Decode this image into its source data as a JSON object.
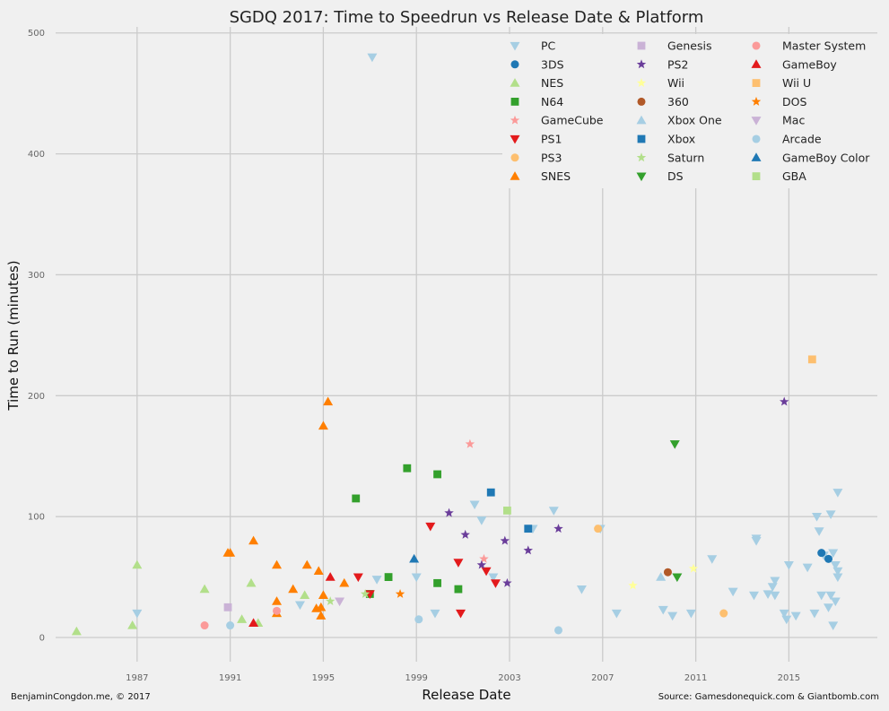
{
  "chart_data": {
    "type": "scatter",
    "title": "SGDQ 2017: Time to Speedrun vs Release Date & Platform",
    "xlabel": "Release Date",
    "ylabel": "Time to Run (minutes)",
    "xlim": [
      1983.5,
      2018.8
    ],
    "ylim": [
      -20,
      505
    ],
    "xticks": [
      1987,
      1991,
      1995,
      1999,
      2003,
      2007,
      2011,
      2015
    ],
    "yticks": [
      0,
      100,
      200,
      300,
      400,
      500
    ],
    "grid": true,
    "legend_position": "top-right",
    "credit_left": "BenjaminCongdon.me, © 2017",
    "credit_right": "Source: Gamesdonequick.com & Giantbomb.com",
    "series": [
      {
        "name": "PC",
        "color": "#a6cee3",
        "marker": "triangle-down",
        "points": [
          [
            1997.1,
            480
          ],
          [
            1987.0,
            20
          ],
          [
            1994.0,
            27
          ],
          [
            1997.3,
            48
          ],
          [
            1999.0,
            50
          ],
          [
            1999.8,
            20
          ],
          [
            2001.5,
            110
          ],
          [
            2001.8,
            97
          ],
          [
            2002.3,
            50
          ],
          [
            2004.0,
            90
          ],
          [
            2004.9,
            105
          ],
          [
            2006.1,
            40
          ],
          [
            2006.9,
            90
          ],
          [
            2007.6,
            20
          ],
          [
            2009.6,
            23
          ],
          [
            2010.0,
            18
          ],
          [
            2010.8,
            20
          ],
          [
            2011.7,
            65
          ],
          [
            2012.6,
            38
          ],
          [
            2013.5,
            35
          ],
          [
            2013.6,
            82
          ],
          [
            2013.6,
            80
          ],
          [
            2014.1,
            36
          ],
          [
            2014.3,
            42
          ],
          [
            2014.4,
            47
          ],
          [
            2014.4,
            35
          ],
          [
            2014.8,
            20
          ],
          [
            2014.9,
            15
          ],
          [
            2015.0,
            60
          ],
          [
            2015.3,
            18
          ],
          [
            2015.8,
            58
          ],
          [
            2016.1,
            20
          ],
          [
            2016.2,
            100
          ],
          [
            2016.3,
            88
          ],
          [
            2016.4,
            35
          ],
          [
            2016.5,
            68
          ],
          [
            2016.7,
            25
          ],
          [
            2016.8,
            102
          ],
          [
            2016.8,
            35
          ],
          [
            2016.9,
            70
          ],
          [
            2016.9,
            10
          ],
          [
            2017.0,
            60
          ],
          [
            2017.1,
            120
          ],
          [
            2017.1,
            55
          ],
          [
            2017.1,
            50
          ],
          [
            2017.0,
            30
          ]
        ]
      },
      {
        "name": "3DS",
        "color": "#1f78b4",
        "marker": "circle",
        "points": [
          [
            2016.4,
            70
          ],
          [
            2016.7,
            65
          ]
        ]
      },
      {
        "name": "NES",
        "color": "#b2df8a",
        "marker": "triangle-up",
        "points": [
          [
            1984.4,
            5
          ],
          [
            1986.8,
            10
          ],
          [
            1987.0,
            60
          ],
          [
            1989.9,
            40
          ],
          [
            1991.5,
            15
          ],
          [
            1991.9,
            45
          ],
          [
            1992.2,
            12
          ],
          [
            1993.0,
            20
          ],
          [
            1994.2,
            35
          ]
        ]
      },
      {
        "name": "N64",
        "color": "#33a02c",
        "marker": "square",
        "points": [
          [
            1996.4,
            115
          ],
          [
            1997.0,
            36
          ],
          [
            1997.8,
            50
          ],
          [
            1998.6,
            140
          ],
          [
            1999.9,
            135
          ],
          [
            1999.9,
            45
          ],
          [
            2000.8,
            40
          ]
        ]
      },
      {
        "name": "GameCube",
        "color": "#fb9a99",
        "marker": "star",
        "points": [
          [
            2001.3,
            160
          ],
          [
            2001.9,
            65
          ]
        ]
      },
      {
        "name": "PS1",
        "color": "#e31a1c",
        "marker": "triangle-down",
        "points": [
          [
            1996.5,
            50
          ],
          [
            1997.0,
            36
          ],
          [
            1999.6,
            92
          ],
          [
            2000.8,
            62
          ],
          [
            2000.9,
            20
          ],
          [
            2002.0,
            55
          ],
          [
            2002.4,
            45
          ]
        ]
      },
      {
        "name": "PS3",
        "color": "#fdbf6f",
        "marker": "circle",
        "points": [
          [
            2006.8,
            90
          ],
          [
            2012.2,
            20
          ]
        ]
      },
      {
        "name": "SNES",
        "color": "#ff7f00",
        "marker": "triangle-up",
        "points": [
          [
            1990.9,
            70
          ],
          [
            1991.0,
            70
          ],
          [
            1992.0,
            80
          ],
          [
            1993.0,
            60
          ],
          [
            1993.0,
            30
          ],
          [
            1993.0,
            20
          ],
          [
            1993.7,
            40
          ],
          [
            1994.3,
            60
          ],
          [
            1994.7,
            24
          ],
          [
            1994.8,
            55
          ],
          [
            1994.9,
            18
          ],
          [
            1994.9,
            25
          ],
          [
            1995.0,
            35
          ],
          [
            1995.0,
            175
          ],
          [
            1995.2,
            195
          ],
          [
            1995.9,
            45
          ]
        ]
      },
      {
        "name": "Genesis",
        "color": "#cab2d6",
        "marker": "square",
        "points": [
          [
            1990.9,
            25
          ]
        ]
      },
      {
        "name": "PS2",
        "color": "#6a3d9a",
        "marker": "star",
        "points": [
          [
            2000.4,
            103
          ],
          [
            2001.1,
            85
          ],
          [
            2001.8,
            60
          ],
          [
            2002.8,
            80
          ],
          [
            2002.9,
            45
          ],
          [
            2003.8,
            72
          ],
          [
            2005.1,
            90
          ],
          [
            2014.8,
            195
          ]
        ]
      },
      {
        "name": "Wii",
        "color": "#ffff99",
        "marker": "star",
        "points": [
          [
            2008.3,
            43
          ],
          [
            2010.9,
            57
          ]
        ]
      },
      {
        "name": "360",
        "color": "#b15928",
        "marker": "circle",
        "points": [
          [
            2009.8,
            54
          ]
        ]
      },
      {
        "name": "Xbox One",
        "color": "#a6cee3",
        "marker": "triangle-up",
        "points": [
          [
            2009.5,
            50
          ]
        ]
      },
      {
        "name": "Xbox",
        "color": "#1f78b4",
        "marker": "square",
        "points": [
          [
            2002.2,
            120
          ],
          [
            2003.8,
            90
          ]
        ]
      },
      {
        "name": "Saturn",
        "color": "#b2df8a",
        "marker": "star",
        "points": [
          [
            1995.3,
            30
          ],
          [
            1996.8,
            36
          ]
        ]
      },
      {
        "name": "DS",
        "color": "#33a02c",
        "marker": "triangle-down",
        "points": [
          [
            2010.1,
            160
          ],
          [
            2010.2,
            50
          ]
        ]
      },
      {
        "name": "Master System",
        "color": "#fb9a99",
        "marker": "circle",
        "points": [
          [
            1989.9,
            10
          ],
          [
            1993.0,
            22
          ]
        ]
      },
      {
        "name": "GameBoy",
        "color": "#e31a1c",
        "marker": "triangle-up",
        "points": [
          [
            1992.0,
            12
          ],
          [
            1995.3,
            50
          ]
        ]
      },
      {
        "name": "Wii U",
        "color": "#fdbf6f",
        "marker": "square",
        "points": [
          [
            2016.0,
            230
          ]
        ]
      },
      {
        "name": "DOS",
        "color": "#ff7f00",
        "marker": "star",
        "points": [
          [
            1998.3,
            36
          ]
        ]
      },
      {
        "name": "Mac",
        "color": "#cab2d6",
        "marker": "triangle-down",
        "points": [
          [
            1995.7,
            30
          ]
        ]
      },
      {
        "name": "Arcade",
        "color": "#a6cee3",
        "marker": "circle",
        "points": [
          [
            1991.0,
            10
          ],
          [
            1999.1,
            15
          ],
          [
            2005.1,
            6
          ]
        ]
      },
      {
        "name": "GameBoy Color",
        "color": "#1f78b4",
        "marker": "triangle-up",
        "points": [
          [
            1998.9,
            65
          ]
        ]
      },
      {
        "name": "GBA",
        "color": "#b2df8a",
        "marker": "square",
        "points": [
          [
            2002.9,
            105
          ]
        ]
      }
    ]
  }
}
